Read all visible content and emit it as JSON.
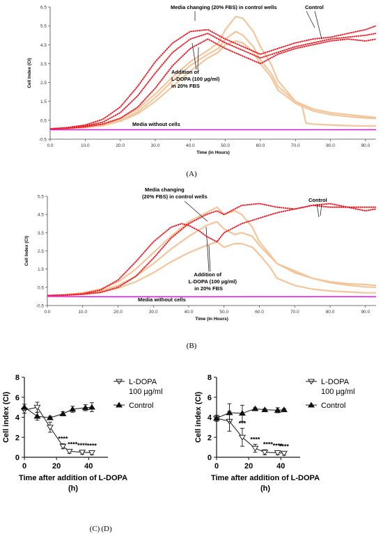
{
  "panels": [
    {
      "id": "A",
      "caption": "(A)",
      "ylabel": "Cell Index (CI)",
      "xlabel": "Time (in Hours)",
      "xticks": [
        "0.0",
        "10.0",
        "20.0",
        "30.0",
        "40.0",
        "50.0",
        "60.0",
        "70.0",
        "80.0",
        "90.0"
      ],
      "yticks": [
        "-0.5",
        "0.5",
        "1.5",
        "2.5",
        "3.5",
        "4.5",
        "5.5",
        "6.5"
      ],
      "annotations": {
        "media_change": "Media changing (20% FBS) in control wells",
        "control": "Control",
        "addition1": "Addition of",
        "addition2": "L-DOPA (100 µg/ml)",
        "addition3": "in 20% FBS",
        "nocells": "Media without cells"
      }
    },
    {
      "id": "B",
      "caption": "(B)",
      "ylabel": "Cell Index (CI)",
      "xlabel": "Time (in Hours)",
      "xticks": [
        "0.0",
        "10.0",
        "20.0",
        "30.0",
        "40.0",
        "50.0",
        "60.0",
        "70.0",
        "80.0",
        "90.0"
      ],
      "yticks": [
        "-0.5",
        "0.5",
        "1.5",
        "2.5",
        "3.5",
        "4.5",
        "5.5"
      ],
      "annotations": {
        "media_change1": "Media changing",
        "media_change2": "(20% FBS) in control wells",
        "control": "Control",
        "addition1": "Addition of",
        "addition2": "L-DOPA (100 µg/ml)",
        "addition3": "in 20% FBS",
        "nocells": "Media without cells"
      }
    },
    {
      "id": "C",
      "caption": "(C)",
      "ylabel": "Cell index (CI)",
      "xlabel1": "Time after addition of L-DOPA",
      "xlabel2": "(h)",
      "xticks": [
        "0",
        "20",
        "40"
      ],
      "yticks": [
        "0",
        "2",
        "4",
        "6",
        "8"
      ],
      "legend": [
        "L-DOPA",
        "100 µg/ml",
        "Control"
      ],
      "stars": [
        "****",
        "****",
        "****",
        "****"
      ]
    },
    {
      "id": "D",
      "caption": "(D)",
      "ylabel": "Cell index (CI)",
      "xlabel1": "Time after addition of  L-DOPA",
      "xlabel2": "(h)",
      "xticks": [
        "0",
        "20",
        "40"
      ],
      "yticks": [
        "0",
        "2",
        "4",
        "6",
        "8"
      ],
      "legend": [
        "L-DOPA",
        "100 µg/ml",
        "Control"
      ],
      "stars": [
        "***",
        "****",
        "****",
        "****",
        "****"
      ]
    }
  ],
  "chart_data": [
    {
      "type": "line",
      "panel": "A",
      "title": "",
      "xlabel": "Time (in Hours)",
      "ylabel": "Cell Index (CI)",
      "xlim": [
        0,
        93
      ],
      "ylim": [
        -0.5,
        6.5
      ],
      "series": [
        {
          "name": "Control",
          "color": "#e8101a",
          "x": [
            0,
            5,
            10,
            15,
            20,
            25,
            30,
            35,
            40,
            45,
            47,
            50,
            55,
            60,
            65,
            70,
            75,
            80,
            85,
            90,
            93
          ],
          "y": [
            0.05,
            0.12,
            0.25,
            0.55,
            1.2,
            2.3,
            3.6,
            4.6,
            5.2,
            5.3,
            5.1,
            4.8,
            4.4,
            4.0,
            4.3,
            4.6,
            4.8,
            4.9,
            5.1,
            5.3,
            5.5
          ]
        },
        {
          "name": "Control",
          "color": "#e8101a",
          "x": [
            0,
            5,
            10,
            15,
            20,
            25,
            30,
            35,
            40,
            45,
            47,
            50,
            55,
            60,
            65,
            70,
            75,
            80,
            85,
            90,
            93
          ],
          "y": [
            0.05,
            0.1,
            0.2,
            0.4,
            0.9,
            1.8,
            3.0,
            4.1,
            4.8,
            5.1,
            4.9,
            4.6,
            4.2,
            3.8,
            4.1,
            4.4,
            4.6,
            4.8,
            4.9,
            5.0,
            5.1
          ]
        },
        {
          "name": "Control",
          "color": "#e8101a",
          "x": [
            0,
            5,
            10,
            15,
            20,
            25,
            30,
            35,
            40,
            45,
            47,
            50,
            55,
            60,
            65,
            70,
            75,
            80,
            85,
            90,
            93
          ],
          "y": [
            0.05,
            0.08,
            0.15,
            0.3,
            0.6,
            1.2,
            2.2,
            3.4,
            4.3,
            4.8,
            4.6,
            4.3,
            3.9,
            3.5,
            4.0,
            4.3,
            4.5,
            4.7,
            4.8,
            4.7,
            4.8
          ]
        },
        {
          "name": "L-DOPA",
          "color": "#f4c59a",
          "x": [
            0,
            5,
            10,
            15,
            20,
            25,
            30,
            35,
            40,
            45,
            48,
            50,
            53,
            55,
            58,
            60,
            63,
            65,
            70,
            72,
            73,
            75,
            80,
            85,
            90,
            93
          ],
          "y": [
            0.05,
            0.08,
            0.15,
            0.3,
            0.6,
            1.1,
            1.9,
            2.8,
            3.6,
            4.2,
            4.6,
            5.3,
            6.0,
            5.9,
            5.2,
            4.4,
            3.5,
            2.6,
            1.5,
            1.2,
            0.35,
            0.3,
            0.25,
            0.22,
            0.2,
            0.2
          ]
        },
        {
          "name": "L-DOPA",
          "color": "#f4c59a",
          "x": [
            0,
            5,
            10,
            15,
            20,
            25,
            30,
            35,
            40,
            45,
            48,
            50,
            53,
            55,
            58,
            60,
            63,
            65,
            70,
            75,
            80,
            85,
            90,
            93
          ],
          "y": [
            0.05,
            0.08,
            0.13,
            0.25,
            0.5,
            0.95,
            1.7,
            2.6,
            3.4,
            4.0,
            4.3,
            4.8,
            5.2,
            5.0,
            4.4,
            3.7,
            3.0,
            2.3,
            1.5,
            1.1,
            0.9,
            0.8,
            0.7,
            0.65
          ]
        },
        {
          "name": "L-DOPA",
          "color": "#f4c59a",
          "x": [
            0,
            5,
            10,
            15,
            20,
            25,
            30,
            35,
            40,
            45,
            48,
            50,
            53,
            55,
            58,
            60,
            63,
            65,
            70,
            75,
            80,
            85,
            90,
            93
          ],
          "y": [
            0.05,
            0.07,
            0.12,
            0.22,
            0.45,
            0.85,
            1.5,
            2.3,
            3.1,
            3.8,
            4.1,
            4.5,
            4.7,
            4.6,
            4.1,
            3.5,
            2.8,
            2.1,
            1.4,
            1.0,
            0.8,
            0.7,
            0.62,
            0.6
          ]
        },
        {
          "name": "Media without cells",
          "color": "#ee10ee",
          "x": [
            0,
            20,
            40,
            60,
            80,
            93
          ],
          "y": [
            0.0,
            0.0,
            0.0,
            0.0,
            0.0,
            0.0
          ]
        }
      ]
    },
    {
      "type": "line",
      "panel": "B",
      "title": "",
      "xlabel": "Time (in Hours)",
      "ylabel": "Cell Index (CI)",
      "xlim": [
        0,
        93
      ],
      "ylim": [
        -0.5,
        5.5
      ],
      "series": [
        {
          "name": "Control",
          "color": "#e8101a",
          "x": [
            0,
            5,
            10,
            15,
            20,
            25,
            30,
            35,
            38,
            40,
            43,
            45,
            48,
            50,
            55,
            60,
            65,
            70,
            75,
            80,
            85,
            90,
            93
          ],
          "y": [
            0.05,
            0.08,
            0.15,
            0.35,
            0.9,
            1.9,
            3.0,
            3.8,
            4.0,
            3.9,
            3.6,
            3.3,
            3.0,
            3.5,
            4.0,
            4.3,
            4.6,
            4.8,
            5.0,
            4.9,
            4.9,
            4.9,
            4.9
          ]
        },
        {
          "name": "Control",
          "color": "#e8101a",
          "x": [
            0,
            5,
            10,
            15,
            20,
            25,
            30,
            35,
            40,
            45,
            48,
            50,
            55,
            60,
            65,
            70,
            75,
            80,
            85,
            90,
            93
          ],
          "y": [
            0.05,
            0.07,
            0.12,
            0.22,
            0.5,
            1.1,
            2.1,
            3.2,
            4.0,
            4.5,
            4.7,
            4.5,
            5.0,
            5.1,
            4.9,
            4.8,
            5.0,
            5.1,
            4.9,
            4.7,
            4.8
          ]
        },
        {
          "name": "L-DOPA",
          "color": "#f4c59a",
          "x": [
            0,
            5,
            10,
            15,
            20,
            25,
            30,
            35,
            40,
            45,
            48,
            50,
            53,
            55,
            58,
            60,
            63,
            65,
            70,
            75,
            80,
            85,
            90,
            93
          ],
          "y": [
            0.05,
            0.1,
            0.2,
            0.4,
            0.8,
            1.5,
            2.4,
            3.3,
            4.1,
            4.6,
            4.9,
            4.5,
            4.7,
            4.5,
            3.8,
            3.0,
            2.3,
            1.8,
            1.3,
            1.0,
            0.8,
            0.7,
            0.65,
            0.6
          ]
        },
        {
          "name": "L-DOPA",
          "color": "#f4c59a",
          "x": [
            0,
            5,
            10,
            15,
            20,
            25,
            30,
            35,
            40,
            45,
            48,
            50,
            53,
            55,
            58,
            60,
            63,
            65,
            70,
            75,
            80,
            85,
            90,
            93
          ],
          "y": [
            0.05,
            0.08,
            0.15,
            0.3,
            0.6,
            1.1,
            1.8,
            2.6,
            3.3,
            3.9,
            4.1,
            3.7,
            3.4,
            3.5,
            3.3,
            2.8,
            2.2,
            1.8,
            1.4,
            1.0,
            0.75,
            0.62,
            0.52,
            0.5
          ]
        },
        {
          "name": "L-DOPA",
          "color": "#f4c59a",
          "x": [
            0,
            5,
            10,
            15,
            20,
            25,
            30,
            35,
            40,
            45,
            48,
            50,
            53,
            55,
            58,
            60,
            63,
            65,
            70,
            75,
            80,
            85,
            90,
            93
          ],
          "y": [
            0.05,
            0.07,
            0.12,
            0.22,
            0.45,
            0.8,
            1.3,
            1.9,
            2.4,
            2.8,
            3.0,
            2.7,
            2.9,
            2.9,
            2.7,
            2.3,
            1.6,
            1.0,
            0.6,
            0.4,
            0.3,
            0.25,
            0.2,
            0.2
          ]
        },
        {
          "name": "Media without cells",
          "color": "#ee10ee",
          "x": [
            0,
            20,
            40,
            60,
            80,
            93
          ],
          "y": [
            0.0,
            -0.02,
            -0.02,
            -0.01,
            -0.01,
            -0.02
          ]
        }
      ]
    },
    {
      "type": "line",
      "panel": "C",
      "xlabel": "Time after addition of L-DOPA (h)",
      "ylabel": "Cell index (CI)",
      "xlim": [
        0,
        52
      ],
      "ylim": [
        0,
        8
      ],
      "series": [
        {
          "name": "L-DOPA 100 µg/ml",
          "marker": "open-triangle-down",
          "x": [
            0,
            8,
            16,
            24,
            28,
            36,
            42
          ],
          "y": [
            4.7,
            5.0,
            3.0,
            1.1,
            0.6,
            0.5,
            0.45
          ],
          "err": [
            0.3,
            0.5,
            0.5,
            0.25,
            0.2,
            0.2,
            0.2
          ]
        },
        {
          "name": "Control",
          "marker": "filled-triangle-up",
          "x": [
            0,
            8,
            16,
            24,
            30,
            38,
            42
          ],
          "y": [
            5.0,
            4.1,
            3.95,
            4.35,
            4.8,
            4.95,
            5.0
          ],
          "err": [
            0.3,
            0.4,
            0.15,
            0.2,
            0.3,
            0.3,
            0.45
          ]
        }
      ],
      "annotations": [
        {
          "x": 24,
          "text": "****"
        },
        {
          "x": 30,
          "text": "****"
        },
        {
          "x": 36,
          "text": "****"
        },
        {
          "x": 42,
          "text": "****"
        }
      ]
    },
    {
      "type": "line",
      "panel": "D",
      "xlabel": "Time after addition of  L-DOPA (h)",
      "ylabel": "Cell index (CI)",
      "xlim": [
        0,
        52
      ],
      "ylim": [
        0,
        8
      ],
      "series": [
        {
          "name": "L-DOPA 100 µg/ml",
          "marker": "open-triangle-down",
          "x": [
            0,
            8,
            16,
            24,
            30,
            38,
            42
          ],
          "y": [
            3.9,
            3.6,
            2.0,
            0.9,
            0.5,
            0.45,
            0.4
          ],
          "err": [
            0.3,
            1.0,
            0.9,
            0.4,
            0.25,
            0.2,
            0.2
          ]
        },
        {
          "name": "Control",
          "marker": "filled-triangle-up",
          "x": [
            0,
            8,
            16,
            24,
            30,
            38,
            42
          ],
          "y": [
            3.9,
            4.45,
            4.4,
            4.85,
            4.75,
            4.7,
            4.75
          ],
          "err": [
            0.2,
            0.9,
            0.8,
            0.1,
            0.1,
            0.25,
            0.1
          ]
        }
      ],
      "annotations": [
        {
          "x": 16,
          "text": "***"
        },
        {
          "x": 24,
          "text": "****"
        },
        {
          "x": 32,
          "text": "****"
        },
        {
          "x": 38,
          "text": "****"
        },
        {
          "x": 42,
          "text": "****"
        }
      ]
    }
  ]
}
